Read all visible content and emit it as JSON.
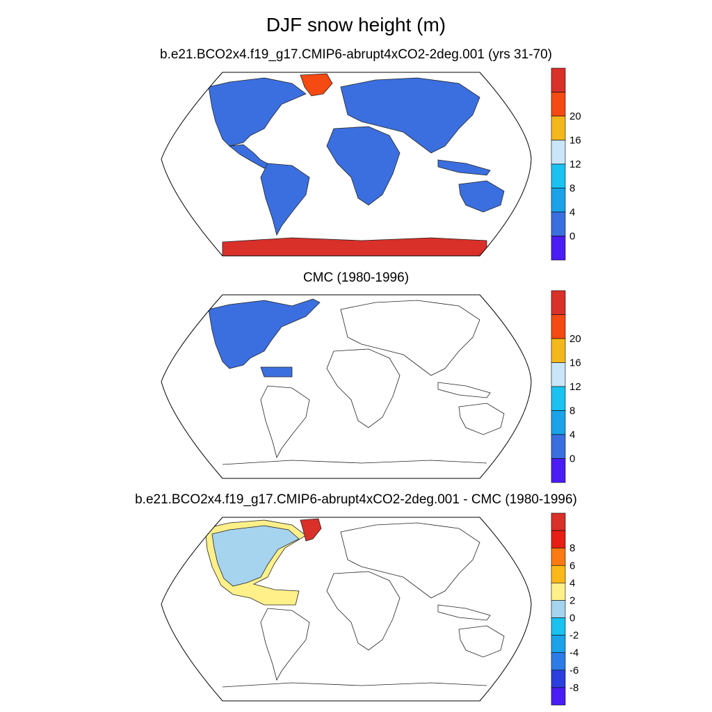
{
  "title": "DJF snow height (m)",
  "panels": [
    {
      "title": "b.e21.BCO2x4.f19_g17.CMIP6-abrupt4xCO2-2deg.001 (yrs 31-70)",
      "colorbar": {
        "colors": [
          "#4b1cf5",
          "#3b6fe0",
          "#1aa3e8",
          "#19c2f0",
          "#c8e6f8",
          "#f5b81c",
          "#f54a12",
          "#d9302a"
        ],
        "tick_labels": [
          "0",
          "4",
          "8",
          "12",
          "16",
          "20"
        ]
      },
      "fields": {
        "land_fill": "#3b6fe0",
        "antarctica_fill": "#d9302a",
        "greenland_fill": "#f54a12"
      }
    },
    {
      "title": "CMC (1980-1996)",
      "colorbar": {
        "colors": [
          "#4b1cf5",
          "#3b6fe0",
          "#1aa3e8",
          "#19c2f0",
          "#c8e6f8",
          "#f5b81c",
          "#f54a12",
          "#d9302a"
        ],
        "tick_labels": [
          "0",
          "4",
          "8",
          "12",
          "16",
          "20"
        ]
      },
      "fields": {
        "north_america_fill": "#3b6fe0"
      }
    },
    {
      "title": "b.e21.BCO2x4.f19_g17.CMIP6-abrupt4xCO2-2deg.001 - CMC (1980-1996)",
      "colorbar": {
        "colors": [
          "#4b1cf5",
          "#2d3ee0",
          "#2c7be6",
          "#1aa3e8",
          "#19c2f0",
          "#a6d4ef",
          "#fff08a",
          "#fbb818",
          "#fb7a12",
          "#e81d14",
          "#d9302a"
        ],
        "tick_labels": [
          "-8",
          "-6",
          "-4",
          "-2",
          "0",
          "2",
          "4",
          "6",
          "8"
        ]
      },
      "fields": {
        "north_america_fill": "#a6d4ef",
        "margin_fill": "#fff08a",
        "greenland_fill": "#d9302a"
      }
    }
  ]
}
